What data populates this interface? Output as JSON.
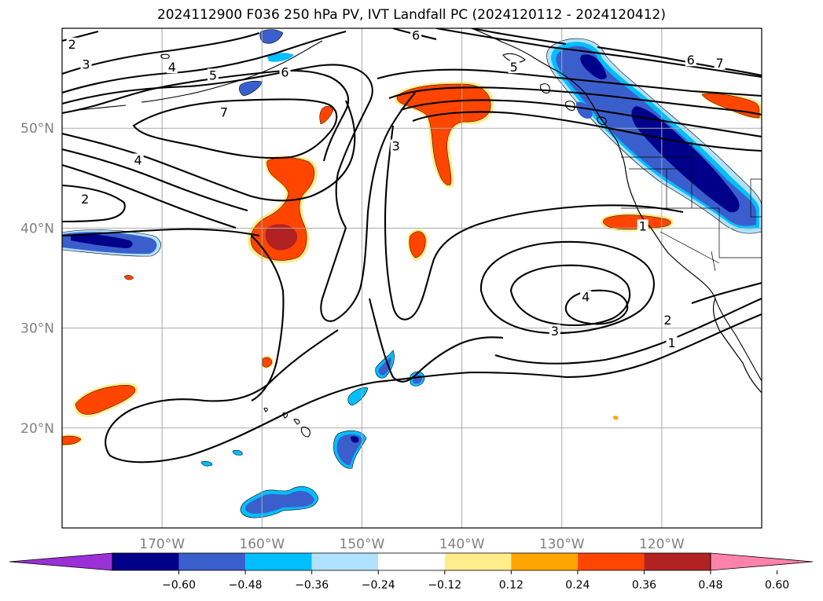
{
  "title": "2024112900 F036 250 hPa PV, IVT Landfall PC (2024120112 - 2024120412)",
  "map": {
    "lon_range": [
      -180,
      -110
    ],
    "lat_range": [
      10,
      60
    ],
    "lon_ticks": [
      {
        "value": -170,
        "label": "170°W"
      },
      {
        "value": -160,
        "label": "160°W"
      },
      {
        "value": -150,
        "label": "150°W"
      },
      {
        "value": -140,
        "label": "140°W"
      },
      {
        "value": -130,
        "label": "130°W"
      },
      {
        "value": -120,
        "label": "120°W"
      }
    ],
    "lat_ticks": [
      {
        "value": 20,
        "label": "20°N"
      },
      {
        "value": 30,
        "label": "30°N"
      },
      {
        "value": 40,
        "label": "40°N"
      },
      {
        "value": 50,
        "label": "50°N"
      }
    ],
    "gridlines": true
  },
  "contour_labels": [
    {
      "text": "2",
      "lon": -179,
      "lat": 58.2
    },
    {
      "text": "3",
      "lon": -177.6,
      "lat": 56.2
    },
    {
      "text": "4",
      "lon": -169,
      "lat": 55.9
    },
    {
      "text": "5",
      "lon": -164.9,
      "lat": 55.1
    },
    {
      "text": "6",
      "lon": -157.7,
      "lat": 55.4
    },
    {
      "text": "6",
      "lon": -144.6,
      "lat": 59.1
    },
    {
      "text": "7",
      "lon": -163.8,
      "lat": 51.4
    },
    {
      "text": "4",
      "lon": -172.4,
      "lat": 46.6
    },
    {
      "text": "2",
      "lon": -177.7,
      "lat": 42.7
    },
    {
      "text": "3",
      "lon": -146.6,
      "lat": 48.0
    },
    {
      "text": "5",
      "lon": -134.8,
      "lat": 55.9
    },
    {
      "text": "6",
      "lon": -117.1,
      "lat": 56.6
    },
    {
      "text": "7",
      "lon": -114.2,
      "lat": 56.3
    },
    {
      "text": "1",
      "lon": -121.9,
      "lat": 40.0
    },
    {
      "text": "4",
      "lon": -127.6,
      "lat": 32.9
    },
    {
      "text": "3",
      "lon": -130.7,
      "lat": 29.5
    },
    {
      "text": "2",
      "lon": -119.4,
      "lat": 30.6
    },
    {
      "text": "1",
      "lon": -119.0,
      "lat": 28.3
    }
  ],
  "colorbar": {
    "colors": [
      "#9b30d6",
      "#00008b",
      "#3a5fcd",
      "#00bfff",
      "#b0e2ff",
      "#ffffff",
      "#ffec8b",
      "#ffa500",
      "#ff4500",
      "#b22222",
      "#ff82ab"
    ],
    "tick_labels": [
      "−0.60",
      "−0.48",
      "−0.36",
      "−0.24",
      "−0.12",
      "0.12",
      "0.24",
      "0.36",
      "0.48",
      "0.60"
    ]
  }
}
